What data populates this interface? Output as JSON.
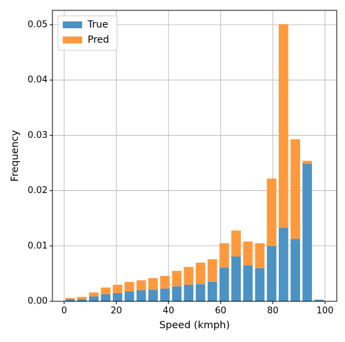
{
  "chart_data": {
    "type": "histogram",
    "xlabel": "Speed (kmph)",
    "ylabel": "Frequency",
    "bins": [
      0,
      4.545,
      9.091,
      13.636,
      18.182,
      22.727,
      27.273,
      31.818,
      36.364,
      40.909,
      45.455,
      50,
      54.545,
      59.091,
      63.636,
      68.182,
      72.727,
      77.273,
      81.818,
      86.364,
      90.909,
      95.455,
      100
    ],
    "stacked": true,
    "series": [
      {
        "name": "True",
        "color": "#4c92c3",
        "values": [
          0.0004,
          0.0004,
          0.0009,
          0.0013,
          0.0015,
          0.0018,
          0.002,
          0.0021,
          0.0023,
          0.0027,
          0.003,
          0.0031,
          0.0035,
          0.0061,
          0.0081,
          0.0065,
          0.006,
          0.01,
          0.0133,
          0.0113,
          0.0249,
          0.0003
        ]
      },
      {
        "name": "Pred",
        "color": "#ff993e",
        "values": [
          0.0002,
          0.0004,
          0.0007,
          0.0012,
          0.0015,
          0.0017,
          0.0018,
          0.0021,
          0.0023,
          0.0028,
          0.0032,
          0.0039,
          0.0041,
          0.0044,
          0.0047,
          0.0043,
          0.0045,
          0.0122,
          0.0368,
          0.018,
          0.0005,
          0
        ]
      }
    ],
    "xlim": [
      -4.5,
      104.5
    ],
    "xticks": [
      0,
      20,
      40,
      60,
      80,
      100
    ],
    "ylim": [
      0,
      0.0526
    ],
    "yticks": [
      {
        "value": 0,
        "label": "0.00"
      },
      0.01,
      0.02,
      0.03,
      0.04,
      0.05
    ],
    "grid": true,
    "legend": "upper left"
  }
}
